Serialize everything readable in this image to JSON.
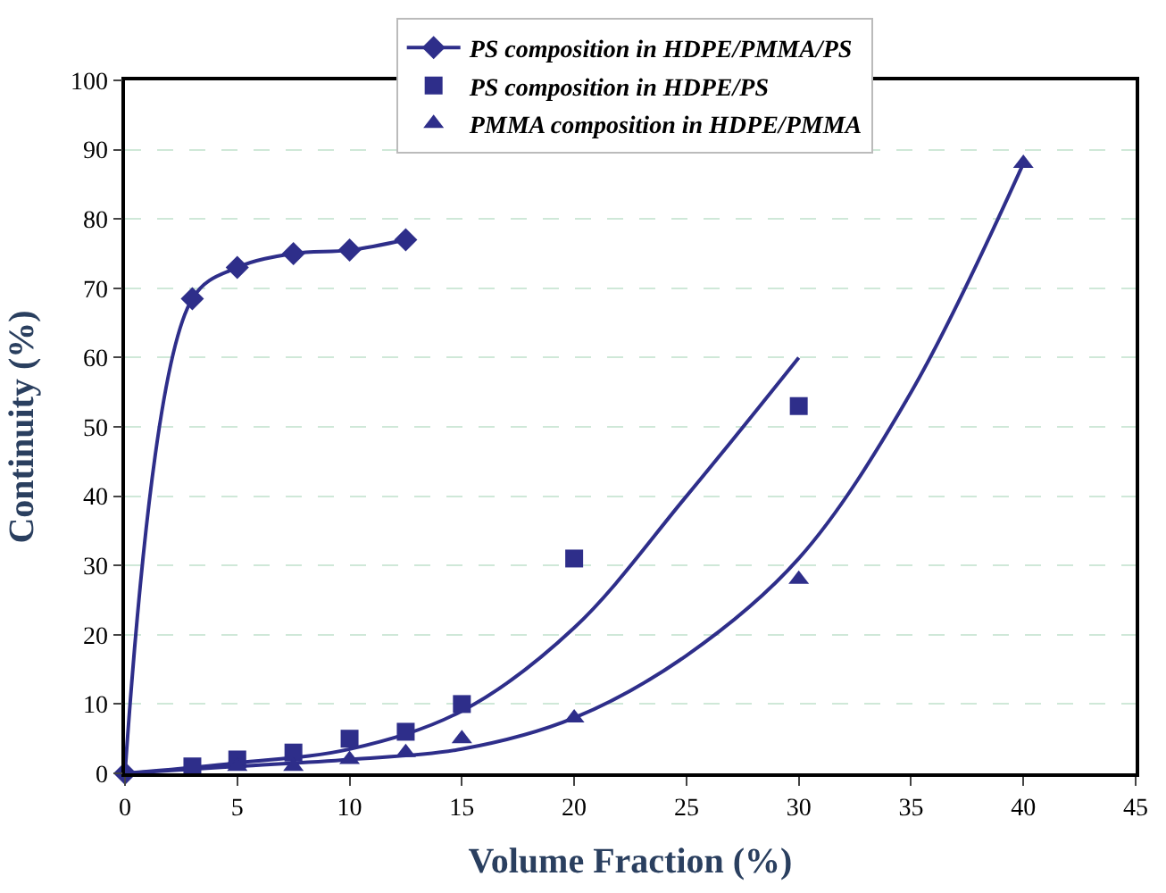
{
  "chart_data": {
    "type": "line",
    "xlabel": "Volume Fraction (%)",
    "ylabel": "Continuity (%)",
    "xlim": [
      0,
      45
    ],
    "xticks": [
      0,
      5,
      10,
      15,
      20,
      25,
      30,
      35,
      40,
      45
    ],
    "ylim": [
      0,
      100
    ],
    "yticks": [
      0,
      10,
      20,
      30,
      40,
      50,
      60,
      70,
      80,
      90,
      100
    ],
    "grid": "y",
    "legend": "top right",
    "series": [
      {
        "marker": "none",
        "color": "#2e2e8a",
        "x": [
          0,
          5,
          10,
          15,
          20,
          25,
          30
        ],
        "values": [
          0,
          1.5,
          3.5,
          9,
          21,
          40,
          60
        ]
      },
      {
        "marker": "none",
        "color": "#2e2e8a",
        "x": [
          0,
          5,
          10,
          15,
          20,
          25,
          30,
          35,
          40
        ],
        "values": [
          0,
          1,
          2,
          3.5,
          8,
          17,
          31,
          55,
          88
        ]
      },
      {
        "name": "PS composition in HDPE/PMMA/PS",
        "marker": "diamond",
        "color": "#2e2e8a",
        "x": [
          0,
          3,
          5,
          7.5,
          10,
          12.5
        ],
        "values": [
          0,
          68.5,
          73,
          75,
          75.5,
          77
        ]
      },
      {
        "name": "PS composition in HDPE/PS",
        "type": "scatter",
        "marker": "square",
        "color": "#2e2e8a",
        "x": [
          3,
          5,
          7.5,
          10,
          12.5,
          15,
          20,
          30
        ],
        "values": [
          1,
          2,
          3,
          5,
          6,
          10,
          31,
          53
        ]
      },
      {
        "name": "PMMA composition in HDPE/PMMA",
        "type": "scatter",
        "marker": "triangle",
        "color": "#2e2e8a",
        "x": [
          5,
          7.5,
          10,
          12.5,
          15,
          20,
          30,
          40
        ],
        "values": [
          1,
          1,
          2,
          3,
          5,
          8,
          28,
          88
        ]
      }
    ]
  }
}
